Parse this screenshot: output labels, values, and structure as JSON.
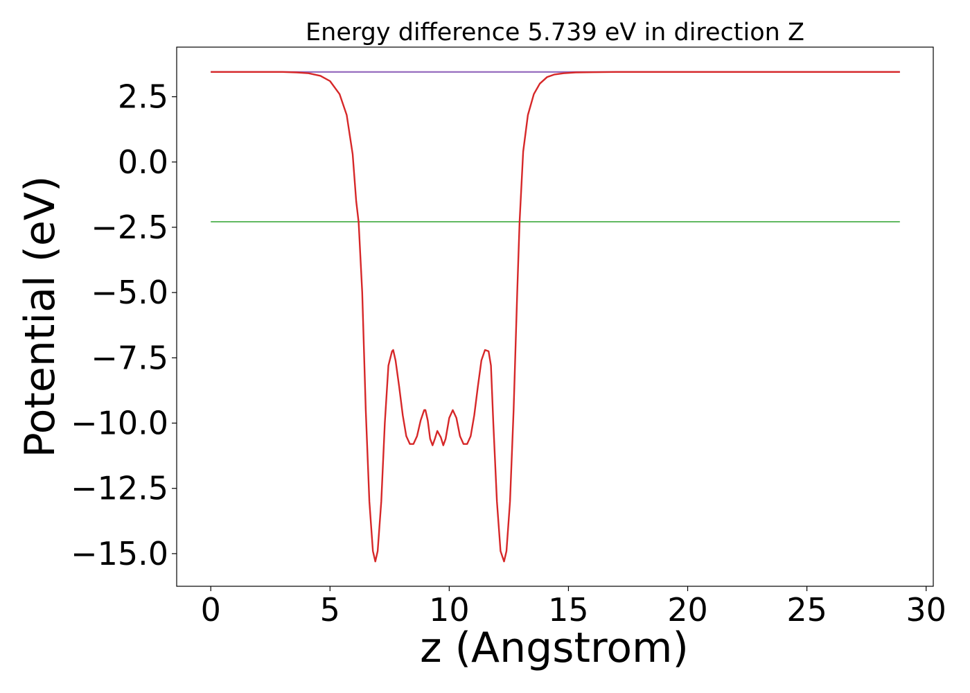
{
  "chart_data": {
    "type": "line",
    "title": "Energy difference 5.739 eV in direction Z",
    "xlabel": "z (Angstrom)",
    "ylabel": "Potential (eV)",
    "xlim": [
      -1.43,
      30.3
    ],
    "ylim": [
      -16.25,
      4.4
    ],
    "xticks": [
      0,
      5,
      10,
      15,
      20,
      25,
      30
    ],
    "yticks": [
      2.5,
      0.0,
      -2.5,
      -5.0,
      -7.5,
      -10.0,
      -12.5,
      -15.0
    ],
    "xtick_labels": [
      "0",
      "5",
      "10",
      "15",
      "20",
      "25",
      "30"
    ],
    "ytick_labels": [
      "2.5",
      "0.0",
      "−2.5",
      "−5.0",
      "−7.5",
      "−10.0",
      "−12.5",
      "−15.0"
    ],
    "grid": false,
    "series": [
      {
        "color": "#1f77b4",
        "x": [
          0,
          28.9
        ],
        "y": [
          3.45,
          3.45
        ]
      },
      {
        "color": "#2ca02c",
        "x": [
          0,
          28.9
        ],
        "y": [
          -2.29,
          -2.29
        ]
      },
      {
        "color": "#9467bd",
        "x": [
          0,
          28.9
        ],
        "y": [
          3.45,
          3.45
        ]
      },
      {
        "color": "#d62728",
        "x": [
          0,
          3.0,
          3.6,
          4.1,
          4.6,
          5.0,
          5.4,
          5.7,
          5.95,
          6.1,
          6.2,
          6.35,
          6.5,
          6.65,
          6.8,
          6.9,
          7.0,
          7.15,
          7.3,
          7.45,
          7.6,
          7.65,
          7.75,
          7.9,
          8.05,
          8.2,
          8.35,
          8.5,
          8.65,
          8.8,
          8.95,
          9.0,
          9.1,
          9.2,
          9.3,
          9.4,
          9.5,
          9.65,
          9.75,
          9.85,
          10.0,
          10.15,
          10.3,
          10.45,
          10.6,
          10.75,
          10.9,
          11.05,
          11.2,
          11.35,
          11.5,
          11.65,
          11.75,
          11.85,
          12.0,
          12.15,
          12.3,
          12.4,
          12.55,
          12.7,
          12.85,
          12.95,
          13.1,
          13.3,
          13.55,
          13.8,
          14.1,
          14.4,
          14.8,
          15.3,
          16.0,
          17.0,
          20.0,
          28.9
        ],
        "y": [
          3.45,
          3.45,
          3.43,
          3.4,
          3.3,
          3.1,
          2.6,
          1.8,
          0.3,
          -1.5,
          -2.3,
          -5.0,
          -9.5,
          -13.0,
          -14.9,
          -15.3,
          -14.9,
          -13.0,
          -10.0,
          -7.8,
          -7.25,
          -7.2,
          -7.6,
          -8.6,
          -9.7,
          -10.5,
          -10.8,
          -10.8,
          -10.5,
          -9.9,
          -9.5,
          -9.5,
          -9.9,
          -10.6,
          -10.85,
          -10.6,
          -10.3,
          -10.55,
          -10.85,
          -10.6,
          -9.8,
          -9.5,
          -9.8,
          -10.5,
          -10.8,
          -10.8,
          -10.5,
          -9.7,
          -8.6,
          -7.6,
          -7.2,
          -7.25,
          -7.8,
          -10.0,
          -13.0,
          -14.9,
          -15.3,
          -14.9,
          -13.0,
          -9.5,
          -5.0,
          -2.3,
          0.4,
          1.8,
          2.6,
          3.0,
          3.25,
          3.35,
          3.4,
          3.43,
          3.44,
          3.45,
          3.45,
          3.45
        ]
      }
    ]
  }
}
